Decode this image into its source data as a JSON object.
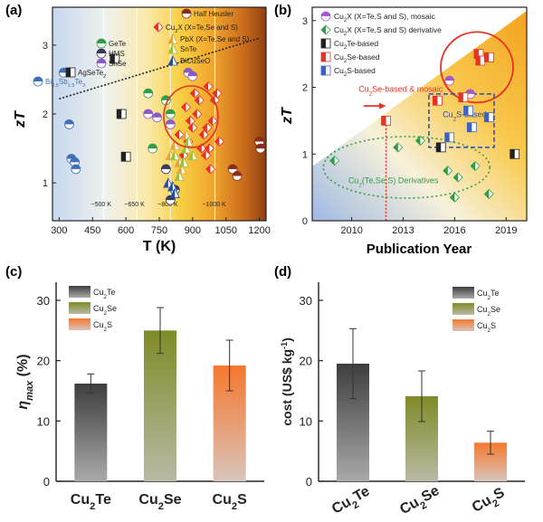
{
  "chart_data": [
    {
      "panel": "(a)",
      "type": "scatter",
      "xlabel": "T (K)",
      "ylabel": "zT",
      "xlim": [
        270,
        1230
      ],
      "ylim": [
        0.45,
        3.55
      ],
      "xticks": [
        "300",
        "450",
        "600",
        "750",
        "900",
        "1050",
        "1200"
      ],
      "yticks": [
        "1",
        "2",
        "3"
      ],
      "temperature_bands": [
        "~500 K",
        "~650 K",
        "~800 K",
        "~1000 K"
      ],
      "fit_line": {
        "x": [
          300,
          1200
        ],
        "y": [
          2.22,
          3.1
        ]
      },
      "legend": [
        {
          "label": "Half Heusler",
          "color": "#8b2b1c"
        },
        {
          "label": "Cu2X (X=Te,Se and S)",
          "color": "#e53326"
        },
        {
          "label": "PbX (X=Te,Se and S)",
          "color": "#e8a23a"
        },
        {
          "label": "GeTe",
          "color": "#2f9e44"
        },
        {
          "label": "SnTe",
          "color": "#9bc23c"
        },
        {
          "label": "HMS",
          "color": "#3a3a5a"
        },
        {
          "label": "BiCuSeO",
          "color": "#1f4fa5"
        },
        {
          "label": "SnSe",
          "color": "#8a5ac8"
        },
        {
          "label": "AgSeTe2",
          "color": "#222222"
        },
        {
          "label": "Bi0.5Sb1.5Te3",
          "color": "#3f6fb8"
        }
      ],
      "series": [
        {
          "name": "Bi0.5Sb1.5Te3",
          "x": [
            320,
            345,
            355,
            370,
            375
          ],
          "y": [
            2.6,
            1.85,
            1.35,
            1.3,
            1.2
          ]
        },
        {
          "name": "AgSeTe2",
          "x": [
            550,
            580,
            600
          ],
          "y": [
            2.8,
            2.0,
            1.38
          ]
        },
        {
          "name": "Cu2X",
          "x": [
            840,
            860,
            870,
            880,
            890,
            900,
            910,
            920,
            930,
            940,
            950,
            960,
            965,
            970,
            975,
            980,
            990,
            1000,
            1010,
            1020
          ],
          "y": [
            1.7,
            1.4,
            2.1,
            1.6,
            1.9,
            1.8,
            2.3,
            2.0,
            2.2,
            1.5,
            1.7,
            1.4,
            1.8,
            2.4,
            1.5,
            1.2,
            1.9,
            2.2,
            2.3,
            1.6
          ]
        },
        {
          "name": "PbX",
          "x": [
            800,
            820,
            840,
            850,
            870
          ],
          "y": [
            1.4,
            1.55,
            1.3,
            1.2,
            1.7
          ]
        },
        {
          "name": "GeTe",
          "x": [
            700,
            720,
            780,
            800
          ],
          "y": [
            2.3,
            1.5,
            2.2,
            2.0
          ]
        },
        {
          "name": "SnTe",
          "x": [
            820,
            840,
            860,
            870,
            880,
            900
          ],
          "y": [
            1.4,
            1.1,
            1.3,
            1.5,
            1.6,
            1.4
          ]
        },
        {
          "name": "HMS",
          "x": [
            780,
            800,
            820
          ],
          "y": [
            1.2,
            0.75,
            0.9
          ]
        },
        {
          "name": "BiCuSeO",
          "x": [
            790,
            810,
            820
          ],
          "y": [
            1.0,
            0.95,
            0.85
          ]
        },
        {
          "name": "SnSe",
          "x": [
            700,
            740,
            800,
            880,
            900
          ],
          "y": [
            2.0,
            1.95,
            1.85,
            2.6,
            2.55
          ]
        },
        {
          "name": "Half Heusler",
          "x": [
            1080,
            1100,
            1200,
            1205
          ],
          "y": [
            1.2,
            1.1,
            1.6,
            1.5
          ]
        }
      ]
    },
    {
      "panel": "(b)",
      "type": "scatter",
      "xlabel": "Publication Year",
      "ylabel": "zT",
      "xlim": [
        2007.7,
        2020.2
      ],
      "ylim": [
        0,
        3.2
      ],
      "xticks": [
        "2010",
        "2013",
        "2016",
        "2019"
      ],
      "yticks": [
        "0",
        "1",
        "2",
        "3"
      ],
      "legend": [
        {
          "label": "Cu2X (X=Te,S and S), mosaic",
          "color": "#a25bcf"
        },
        {
          "label": "Cu2X (X=Te,S and S) derivative",
          "color": "#2f9e44"
        },
        {
          "label": "Cu2Te-based",
          "color": "#222222"
        },
        {
          "label": "Cu2Se-based",
          "color": "#e53326"
        },
        {
          "label": "Cu2S-based",
          "color": "#3a62c7"
        }
      ],
      "annotations": [
        "Cu2Se-based & mosaic",
        "Cu2S-based",
        "Cu2(Te,Se,S) Derivatives"
      ],
      "reference_year": 2012,
      "series": [
        {
          "name": "Cu2X mosaic",
          "x": [
            2015.7,
            2016.9
          ],
          "y": [
            2.1,
            1.9
          ]
        },
        {
          "name": "Cu2X derivative",
          "x": [
            2009,
            2012.7,
            2014,
            2015.6,
            2016.2,
            2017.2,
            2018,
            2016
          ],
          "y": [
            0.9,
            1.1,
            1.2,
            0.75,
            0.65,
            0.82,
            0.4,
            0.35
          ]
        },
        {
          "name": "Cu2Te-based",
          "x": [
            2015.2,
            2019.5
          ],
          "y": [
            1.1,
            1.0
          ]
        },
        {
          "name": "Cu2Se-based",
          "x": [
            2012,
            2015,
            2016.5,
            2017.4,
            2017.5,
            2018
          ],
          "y": [
            1.5,
            1.8,
            1.85,
            2.5,
            2.4,
            2.45
          ]
        },
        {
          "name": "Cu2S-based",
          "x": [
            2015.7,
            2016.8,
            2017,
            2018
          ],
          "y": [
            1.25,
            1.65,
            1.4,
            1.55
          ]
        }
      ]
    },
    {
      "panel": "(c)",
      "type": "bar",
      "ylabel": "ηmax (%)",
      "ylim": [
        0,
        33
      ],
      "yticks": [
        "0",
        "10",
        "20",
        "30"
      ],
      "categories": [
        "Cu2Te",
        "Cu2Se",
        "Cu2S"
      ],
      "legend": [
        "Cu2Te",
        "Cu2Se",
        "Cu2S"
      ],
      "values": [
        16.2,
        25.0,
        19.2
      ],
      "errors": [
        1.6,
        3.8,
        4.2
      ],
      "colors": [
        "#454545",
        "#8a952c",
        "#f07a33"
      ]
    },
    {
      "panel": "(d)",
      "type": "bar",
      "ylabel": "cost (US$ kg-1)",
      "ylim": [
        0,
        33
      ],
      "yticks": [
        "0",
        "10",
        "20",
        "30"
      ],
      "categories": [
        "Cu2Te",
        "Cu2Se",
        "Cu2S"
      ],
      "legend": [
        "Cu2Te",
        "Cu2Se",
        "Cu2S"
      ],
      "values": [
        19.5,
        14.1,
        6.4
      ],
      "errors": [
        5.8,
        4.2,
        1.9
      ],
      "colors": [
        "#454545",
        "#8a952c",
        "#f07a33"
      ]
    }
  ]
}
